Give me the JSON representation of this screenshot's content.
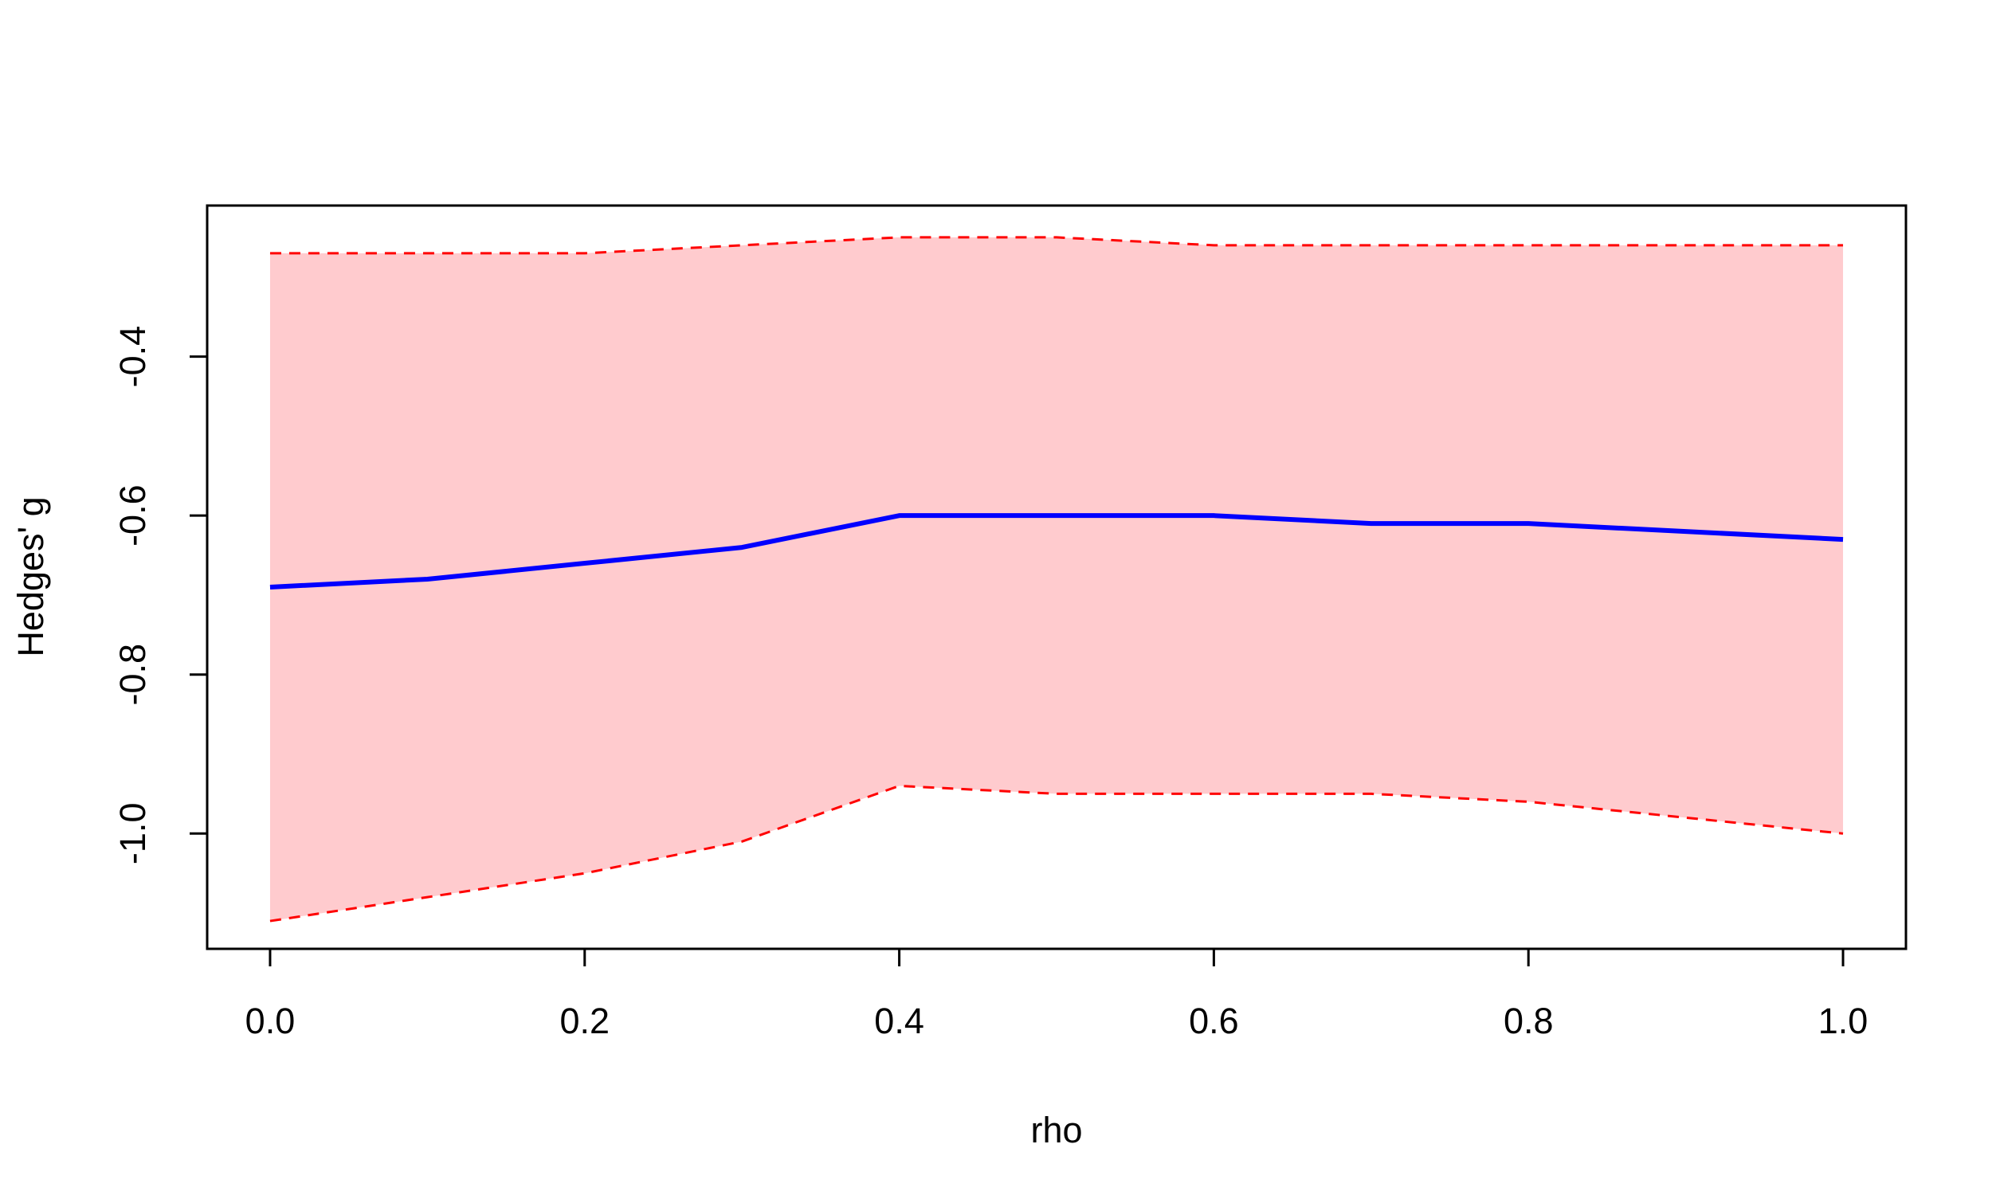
{
  "chart_data": {
    "type": "line",
    "title": "",
    "xlabel": "rho",
    "ylabel": "Hedges' g",
    "xlim": [
      -0.04,
      1.04
    ],
    "ylim": [
      -1.145,
      -0.21
    ],
    "x_ticks": [
      0.0,
      0.2,
      0.4,
      0.6,
      0.8,
      1.0
    ],
    "x_tick_labels": [
      "0.0",
      "0.2",
      "0.4",
      "0.6",
      "0.8",
      "1.0"
    ],
    "y_ticks": [
      -0.4,
      -0.6,
      -0.8,
      -1.0
    ],
    "y_tick_labels": [
      "-0.4",
      "-0.6",
      "-0.8",
      "-1.0"
    ],
    "grid": false,
    "x": [
      0.0,
      0.1,
      0.2,
      0.3,
      0.4,
      0.5,
      0.6,
      0.7,
      0.8,
      0.9,
      1.0
    ],
    "series": [
      {
        "role": "estimate",
        "color": "#0000ff",
        "style": "solid",
        "values": [
          -0.69,
          -0.68,
          -0.66,
          -0.64,
          -0.6,
          -0.6,
          -0.6,
          -0.61,
          -0.61,
          -0.62,
          -0.63
        ]
      },
      {
        "role": "upper-bound",
        "color": "#ff0000",
        "style": "dashed",
        "values": [
          -0.27,
          -0.27,
          -0.27,
          -0.26,
          -0.25,
          -0.25,
          -0.26,
          -0.26,
          -0.26,
          -0.26,
          -0.26
        ]
      },
      {
        "role": "lower-bound",
        "color": "#ff0000",
        "style": "dashed",
        "values": [
          -1.11,
          -1.08,
          -1.05,
          -1.01,
          -0.94,
          -0.95,
          -0.95,
          -0.95,
          -0.96,
          -0.98,
          -1.0
        ]
      }
    ],
    "band_fill_color": "#ffcbce"
  }
}
